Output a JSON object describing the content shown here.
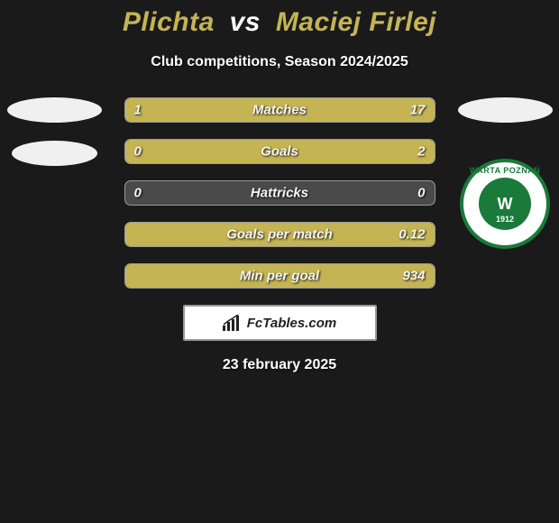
{
  "header": {
    "player1": "Plichta",
    "vs": "vs",
    "player2": "Maciej Firlej",
    "subtitle": "Club competitions, Season 2024/2025"
  },
  "colors": {
    "accent": "#c4b454",
    "bar_bg": "#4a4a4a",
    "bar_border": "#9a9a9a",
    "text": "#ffffff",
    "page_bg": "#1a1a1a",
    "club_green": "#1a7a3a",
    "club_white": "#ffffff"
  },
  "club_right": {
    "name_top": "WARTA POZNAŃ",
    "letter": "W",
    "year": "1912"
  },
  "stats": [
    {
      "label": "Matches",
      "left_val": "1",
      "right_val": "17",
      "left_pct": 5.6,
      "right_pct": 94.4
    },
    {
      "label": "Goals",
      "left_val": "0",
      "right_val": "2",
      "left_pct": 0,
      "right_pct": 100
    },
    {
      "label": "Hattricks",
      "left_val": "0",
      "right_val": "0",
      "left_pct": 0,
      "right_pct": 0
    },
    {
      "label": "Goals per match",
      "left_val": "",
      "right_val": "0.12",
      "left_pct": 0,
      "right_pct": 100
    },
    {
      "label": "Min per goal",
      "left_val": "",
      "right_val": "934",
      "left_pct": 0,
      "right_pct": 100
    }
  ],
  "brand": {
    "text": "FcTables.com"
  },
  "footer": {
    "date": "23 february 2025"
  }
}
